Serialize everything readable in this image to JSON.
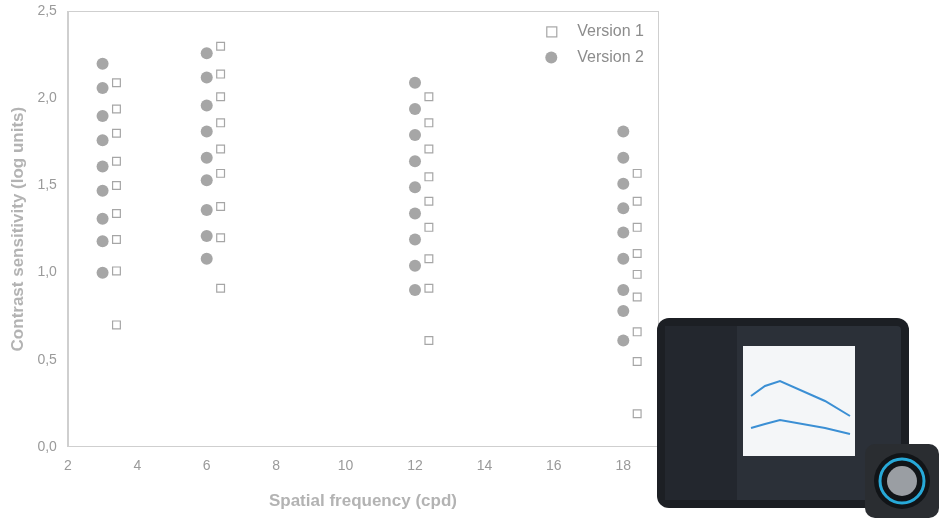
{
  "chart_data": {
    "type": "scatter",
    "x_label": "Spatial frequency (cpd)",
    "y_label": "Contrast sensitivity (log units)",
    "xlim": [
      2,
      19
    ],
    "xticks": [
      2,
      4,
      6,
      8,
      10,
      12,
      14,
      16,
      18
    ],
    "ylim": [
      0,
      2.5
    ],
    "yticks": [
      {
        "value": 0,
        "label": "0,0"
      },
      {
        "value": 0.5,
        "label": "0,5"
      },
      {
        "value": 1,
        "label": "1,0"
      },
      {
        "value": 1.5,
        "label": "1,5"
      },
      {
        "value": 2,
        "label": "2,0"
      },
      {
        "value": 2.5,
        "label": "2,5"
      }
    ],
    "grid": false,
    "legend": "upper right",
    "series": [
      {
        "name": "Version 1",
        "color": "#a6a6a6",
        "marker": "square",
        "x": [
          3.4,
          3.4,
          3.4,
          3.4,
          3.4,
          3.4,
          3.4,
          3.4,
          3.4,
          6.4,
          6.4,
          6.4,
          6.4,
          6.4,
          6.4,
          6.4,
          6.4,
          6.4,
          12.4,
          12.4,
          12.4,
          12.4,
          12.4,
          12.4,
          12.4,
          12.4,
          12.4,
          18.4,
          18.4,
          18.4,
          18.4,
          18.4,
          18.4,
          18.4,
          18.4,
          18.4
        ],
        "values": [
          2.09,
          1.94,
          1.8,
          1.64,
          1.5,
          1.34,
          1.19,
          1.01,
          0.7,
          2.3,
          2.14,
          2.01,
          1.86,
          1.71,
          1.57,
          1.38,
          1.2,
          0.91,
          2.01,
          1.86,
          1.71,
          1.55,
          1.41,
          1.26,
          1.08,
          0.91,
          0.61,
          1.57,
          1.41,
          1.26,
          1.11,
          0.99,
          0.86,
          0.66,
          0.49,
          0.19
        ]
      },
      {
        "name": "Version 2",
        "color": "#a6a6a6",
        "marker": "circle",
        "x": [
          3,
          3,
          3,
          3,
          3,
          3,
          3,
          3,
          3,
          6,
          6,
          6,
          6,
          6,
          6,
          6,
          6,
          6,
          12,
          12,
          12,
          12,
          12,
          12,
          12,
          12,
          12,
          18,
          18,
          18,
          18,
          18,
          18,
          18,
          18,
          18
        ],
        "values": [
          2.2,
          2.06,
          1.9,
          1.76,
          1.61,
          1.47,
          1.31,
          1.18,
          1.0,
          2.26,
          2.12,
          1.96,
          1.81,
          1.66,
          1.53,
          1.36,
          1.21,
          1.08,
          2.09,
          1.94,
          1.79,
          1.64,
          1.49,
          1.34,
          1.19,
          1.04,
          0.9,
          1.81,
          1.66,
          1.51,
          1.37,
          1.23,
          1.08,
          0.9,
          0.78,
          0.61
        ]
      }
    ]
  }
}
